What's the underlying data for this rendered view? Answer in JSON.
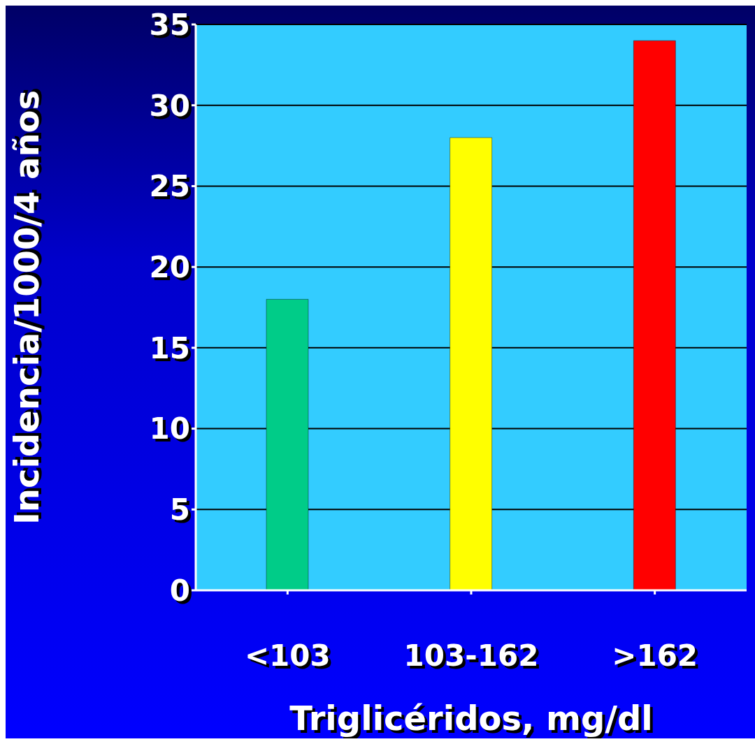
{
  "chart_data": {
    "type": "bar",
    "categories": [
      "<103",
      "103-162",
      ">162"
    ],
    "values": [
      18,
      28,
      34
    ],
    "colors": [
      "#00cc88",
      "#ffff00",
      "#ff0000"
    ],
    "xlabel": "Triglicéridos, mg/dl",
    "ylabel": "Incidencia/1000/4 años",
    "ylim": [
      0,
      35
    ],
    "yticks": [
      0,
      5,
      10,
      15,
      20,
      25,
      30,
      35
    ],
    "grid": "y"
  }
}
